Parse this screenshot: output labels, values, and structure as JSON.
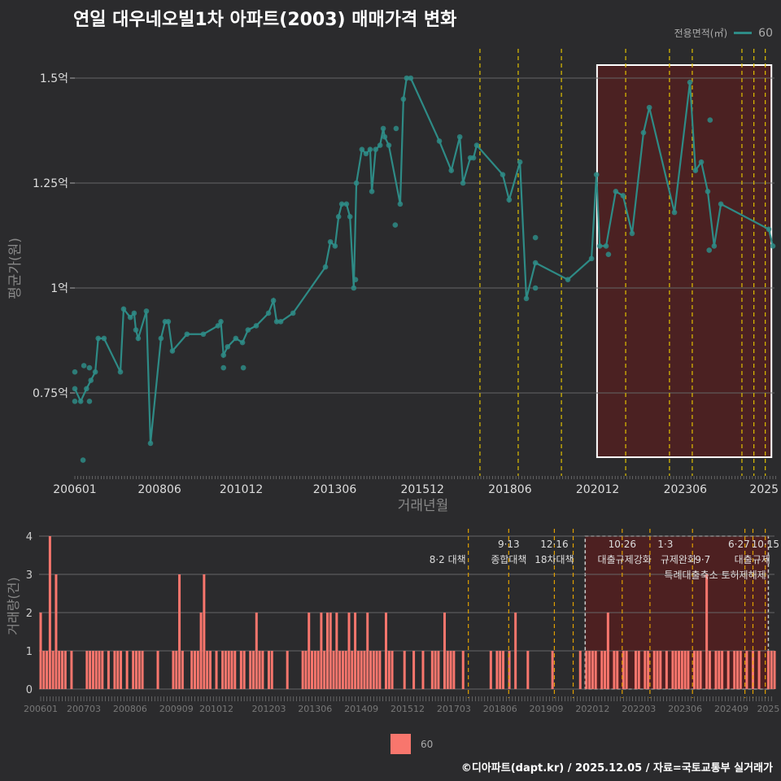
{
  "title": "연일 대우네오빌1차 아파트(2003) 매매가격 변화",
  "footer": "©디아파트(dapt.kr) / 2025.12.05 / 자료=국토교통부 실거래가",
  "colors": {
    "line": "#2e8b86",
    "bar": "#f8766d",
    "policy": "#e0c000",
    "highlight": "#5a1e1e"
  },
  "chart_data": [
    {
      "type": "line",
      "title": "연일 대우네오빌1차 아파트(2003) 매매가격 변화",
      "xlabel": "거래년월",
      "ylabel": "평균가(원)",
      "x_unit": "months since 200601",
      "legend": {
        "title": "전용면적(㎡)",
        "entries": [
          "60"
        ],
        "placement": "top-right"
      },
      "yticks": [
        {
          "v": 0.75,
          "label": "0.75억"
        },
        {
          "v": 1.0,
          "label": "1억"
        },
        {
          "v": 1.25,
          "label": "1.25억"
        },
        {
          "v": 1.5,
          "label": "1.5억"
        }
      ],
      "ylim": [
        0.56,
        1.58
      ],
      "xticks": [
        {
          "m": 0,
          "label": "200601"
        },
        {
          "m": 29,
          "label": "200806"
        },
        {
          "m": 57,
          "label": "201012"
        },
        {
          "m": 89,
          "label": "201306"
        },
        {
          "m": 119,
          "label": "201512"
        },
        {
          "m": 149,
          "label": "201806"
        },
        {
          "m": 179,
          "label": "202012"
        },
        {
          "m": 209,
          "label": "202306"
        },
        {
          "m": 236,
          "label": "2025"
        }
      ],
      "xlim": [
        0,
        240
      ],
      "series": [
        {
          "name": "60",
          "points": [
            [
              0,
              0.76
            ],
            [
              2,
              0.73
            ],
            [
              4,
              0.76
            ],
            [
              5.5,
              0.78
            ],
            [
              7,
              0.8
            ],
            [
              8,
              0.88
            ],
            [
              10,
              0.88
            ],
            [
              15.6,
              0.8
            ],
            [
              16.7,
              0.95
            ],
            [
              19,
              0.93
            ],
            [
              20.3,
              0.94
            ],
            [
              20.9,
              0.9
            ],
            [
              21.7,
              0.88
            ],
            [
              24.5,
              0.945
            ],
            [
              25.9,
              0.63
            ],
            [
              29.5,
              0.88
            ],
            [
              30.9,
              0.92
            ],
            [
              32,
              0.92
            ],
            [
              33.4,
              0.85
            ],
            [
              38.4,
              0.89
            ],
            [
              44,
              0.89
            ],
            [
              49,
              0.91
            ],
            [
              50,
              0.92
            ],
            [
              50.9,
              0.84
            ],
            [
              52.3,
              0.86
            ],
            [
              55.1,
              0.88
            ],
            [
              57.4,
              0.87
            ],
            [
              59.3,
              0.9
            ],
            [
              62.1,
              0.91
            ],
            [
              66.3,
              0.94
            ],
            [
              68,
              0.97
            ],
            [
              69.1,
              0.92
            ],
            [
              70.5,
              0.92
            ],
            [
              74.7,
              0.94
            ],
            [
              85.8,
              1.05
            ],
            [
              87.5,
              1.11
            ],
            [
              89.1,
              1.1
            ],
            [
              90.3,
              1.17
            ],
            [
              91.4,
              1.2
            ],
            [
              93,
              1.2
            ],
            [
              94.2,
              1.17
            ],
            [
              95.5,
              1.0
            ],
            [
              96.4,
              1.25
            ],
            [
              98.3,
              1.33
            ],
            [
              99.7,
              1.32
            ],
            [
              101.1,
              1.33
            ],
            [
              101.7,
              1.23
            ],
            [
              103,
              1.33
            ],
            [
              104.5,
              1.34
            ],
            [
              105.6,
              1.38
            ],
            [
              106.1,
              1.36
            ],
            [
              107.5,
              1.34
            ],
            [
              111.4,
              1.2
            ],
            [
              112.5,
              1.45
            ],
            [
              113.6,
              1.5
            ],
            [
              115,
              1.5
            ],
            [
              124.8,
              1.35
            ],
            [
              128.9,
              1.28
            ],
            [
              131.8,
              1.36
            ],
            [
              132.9,
              1.25
            ],
            [
              135.4,
              1.31
            ],
            [
              136.5,
              1.31
            ],
            [
              137.6,
              1.34
            ],
            [
              146.5,
              1.27
            ],
            [
              148.7,
              1.21
            ],
            [
              152.4,
              1.3
            ],
            [
              154.6,
              0.975
            ],
            [
              157.7,
              1.06
            ],
            [
              168.8,
              1.02
            ],
            [
              176.9,
              1.07
            ],
            [
              178.6,
              1.27
            ],
            [
              179.7,
              1.1
            ],
            [
              181.9,
              1.1
            ],
            [
              185.2,
              1.23
            ],
            [
              187.7,
              1.22
            ],
            [
              190.8,
              1.13
            ],
            [
              194.7,
              1.37
            ],
            [
              196.7,
              1.43
            ],
            [
              205.3,
              1.18
            ],
            [
              210.6,
              1.49
            ],
            [
              212.5,
              1.28
            ],
            [
              214.5,
              1.3
            ],
            [
              216.7,
              1.23
            ],
            [
              218.9,
              1.1
            ],
            [
              221.2,
              1.2
            ],
            [
              237.6,
              1.14
            ],
            [
              239,
              1.1
            ]
          ]
        }
      ],
      "extra_points": [
        [
          0,
          0.8
        ],
        [
          0,
          0.73
        ],
        [
          2.8,
          0.59
        ],
        [
          3.1,
          0.815
        ],
        [
          5,
          0.73
        ],
        [
          5,
          0.81
        ],
        [
          50.9,
          0.81
        ],
        [
          57.7,
          0.81
        ],
        [
          96.1,
          1.02
        ],
        [
          109.7,
          1.15
        ],
        [
          110,
          1.38
        ],
        [
          157.7,
          1.12
        ],
        [
          157.7,
          1.0
        ],
        [
          182.7,
          1.08
        ],
        [
          217.5,
          1.4
        ],
        [
          217.2,
          1.09
        ]
      ],
      "policy_lines": [
        138.7,
        151.8,
        166.6,
        188.6,
        203.6,
        211.4,
        228.4,
        232.5,
        236.4
      ],
      "highlight_range": [
        178.8,
        238.5
      ]
    },
    {
      "type": "bar",
      "ylabel": "거래량(건)",
      "x_unit": "months since 200601",
      "ylim": [
        0,
        4
      ],
      "yticks": [
        0,
        1,
        2,
        3,
        4
      ],
      "xticks": [
        {
          "m": 0,
          "label": "200601"
        },
        {
          "m": 14,
          "label": "200703"
        },
        {
          "m": 29,
          "label": "200806"
        },
        {
          "m": 44,
          "label": "200909"
        },
        {
          "m": 57,
          "label": "201012"
        },
        {
          "m": 74,
          "label": "201203"
        },
        {
          "m": 89,
          "label": "201306"
        },
        {
          "m": 104,
          "label": "201409"
        },
        {
          "m": 119,
          "label": "201512"
        },
        {
          "m": 134,
          "label": "201703"
        },
        {
          "m": 149,
          "label": "201806"
        },
        {
          "m": 164,
          "label": "201909"
        },
        {
          "m": 179,
          "label": "202012"
        },
        {
          "m": 194,
          "label": "202203"
        },
        {
          "m": 209,
          "label": "202306"
        },
        {
          "m": 224,
          "label": "202409"
        },
        {
          "m": 236,
          "label": "2025"
        }
      ],
      "legend": {
        "entries": [
          "60"
        ],
        "placement": "bottom"
      },
      "bars": [
        [
          0,
          2
        ],
        [
          1,
          1
        ],
        [
          2,
          1
        ],
        [
          3,
          4
        ],
        [
          4,
          1
        ],
        [
          5,
          3
        ],
        [
          6,
          1
        ],
        [
          7,
          1
        ],
        [
          8,
          1
        ],
        [
          10,
          1
        ],
        [
          15,
          1
        ],
        [
          16,
          1
        ],
        [
          17,
          1
        ],
        [
          18,
          1
        ],
        [
          19,
          1
        ],
        [
          20,
          1
        ],
        [
          22,
          1
        ],
        [
          24,
          1
        ],
        [
          25,
          1
        ],
        [
          26,
          1
        ],
        [
          28,
          1
        ],
        [
          30,
          1
        ],
        [
          31,
          1
        ],
        [
          32,
          1
        ],
        [
          33,
          1
        ],
        [
          38,
          1
        ],
        [
          43,
          1
        ],
        [
          44,
          1
        ],
        [
          45,
          3
        ],
        [
          46,
          1
        ],
        [
          49,
          1
        ],
        [
          50,
          1
        ],
        [
          51,
          1
        ],
        [
          52,
          2
        ],
        [
          53,
          3
        ],
        [
          54,
          1
        ],
        [
          55,
          1
        ],
        [
          57,
          1
        ],
        [
          59,
          1
        ],
        [
          60,
          1
        ],
        [
          61,
          1
        ],
        [
          62,
          1
        ],
        [
          63,
          1
        ],
        [
          65,
          1
        ],
        [
          66,
          1
        ],
        [
          68,
          1
        ],
        [
          69,
          1
        ],
        [
          70,
          2
        ],
        [
          71,
          1
        ],
        [
          72,
          1
        ],
        [
          74,
          1
        ],
        [
          75,
          1
        ],
        [
          80,
          1
        ],
        [
          85,
          1
        ],
        [
          86,
          1
        ],
        [
          87,
          2
        ],
        [
          88,
          1
        ],
        [
          89,
          1
        ],
        [
          90,
          1
        ],
        [
          91,
          2
        ],
        [
          92,
          1
        ],
        [
          93,
          2
        ],
        [
          94,
          2
        ],
        [
          95,
          1
        ],
        [
          96,
          2
        ],
        [
          97,
          1
        ],
        [
          98,
          1
        ],
        [
          99,
          1
        ],
        [
          100,
          2
        ],
        [
          101,
          1
        ],
        [
          102,
          2
        ],
        [
          103,
          1
        ],
        [
          104,
          1
        ],
        [
          105,
          1
        ],
        [
          106,
          2
        ],
        [
          107,
          1
        ],
        [
          108,
          1
        ],
        [
          109,
          1
        ],
        [
          110,
          1
        ],
        [
          112,
          2
        ],
        [
          113,
          1
        ],
        [
          114,
          1
        ],
        [
          118,
          1
        ],
        [
          121,
          1
        ],
        [
          124,
          1
        ],
        [
          127,
          1
        ],
        [
          128,
          1
        ],
        [
          129,
          1
        ],
        [
          131,
          2
        ],
        [
          132,
          1
        ],
        [
          133,
          1
        ],
        [
          134,
          1
        ],
        [
          137,
          1
        ],
        [
          146,
          1
        ],
        [
          148,
          1
        ],
        [
          149,
          1
        ],
        [
          150,
          1
        ],
        [
          152,
          1
        ],
        [
          154,
          2
        ],
        [
          158,
          1
        ],
        [
          166,
          1
        ],
        [
          175,
          1
        ],
        [
          177,
          1
        ],
        [
          178,
          1
        ],
        [
          179,
          1
        ],
        [
          180,
          1
        ],
        [
          182,
          1
        ],
        [
          183,
          1
        ],
        [
          184,
          2
        ],
        [
          186,
          1
        ],
        [
          187,
          1
        ],
        [
          189,
          1
        ],
        [
          190,
          1
        ],
        [
          193,
          1
        ],
        [
          194,
          1
        ],
        [
          196,
          1
        ],
        [
          197,
          1
        ],
        [
          199,
          1
        ],
        [
          200,
          1
        ],
        [
          201,
          1
        ],
        [
          203,
          1
        ],
        [
          205,
          1
        ],
        [
          206,
          1
        ],
        [
          207,
          1
        ],
        [
          208,
          1
        ],
        [
          209,
          1
        ],
        [
          210,
          1
        ],
        [
          212,
          1
        ],
        [
          213,
          1
        ],
        [
          214,
          1
        ],
        [
          216,
          3
        ],
        [
          217,
          1
        ],
        [
          219,
          1
        ],
        [
          220,
          1
        ],
        [
          221,
          1
        ],
        [
          223,
          1
        ],
        [
          225,
          1
        ],
        [
          226,
          1
        ],
        [
          227,
          1
        ],
        [
          229,
          1
        ],
        [
          231,
          1
        ],
        [
          233,
          1
        ],
        [
          236,
          1
        ],
        [
          237,
          1
        ],
        [
          238,
          1
        ]
      ],
      "policy_lines": [
        138.7,
        151.8,
        166.6,
        172.7,
        188.6,
        197.6,
        211.4,
        228.4,
        231,
        235
      ],
      "highlight_range": [
        176.6,
        236
      ],
      "annotations": [
        {
          "m": 138.7,
          "row": 1,
          "text": "8·2 대책"
        },
        {
          "m": 151.8,
          "row": 0,
          "text": "9·13"
        },
        {
          "m": 151.8,
          "row": 1,
          "text": "종합대책"
        },
        {
          "m": 166.6,
          "row": 0,
          "text": "12·16"
        },
        {
          "m": 166.6,
          "row": 1,
          "text": "18차대책"
        },
        {
          "m": 188.6,
          "row": 0,
          "text": "10·26"
        },
        {
          "m": 188.6,
          "row": 1,
          "text": "대출규제강화"
        },
        {
          "m": 202.6,
          "row": 0,
          "text": "1·3"
        },
        {
          "m": 202.6,
          "row": 1,
          "text": "규제완화"
        },
        {
          "m": 211.4,
          "row": 1,
          "text": "9·7"
        },
        {
          "m": 219.8,
          "row": 2,
          "text": "특례대출축소 토허제해제"
        },
        {
          "m": 230.8,
          "row": 0,
          "text": "6·27"
        },
        {
          "m": 230.8,
          "row": 1,
          "text": "대출규제"
        },
        {
          "m": 236,
          "row": 0,
          "text": "10·15"
        }
      ]
    }
  ]
}
